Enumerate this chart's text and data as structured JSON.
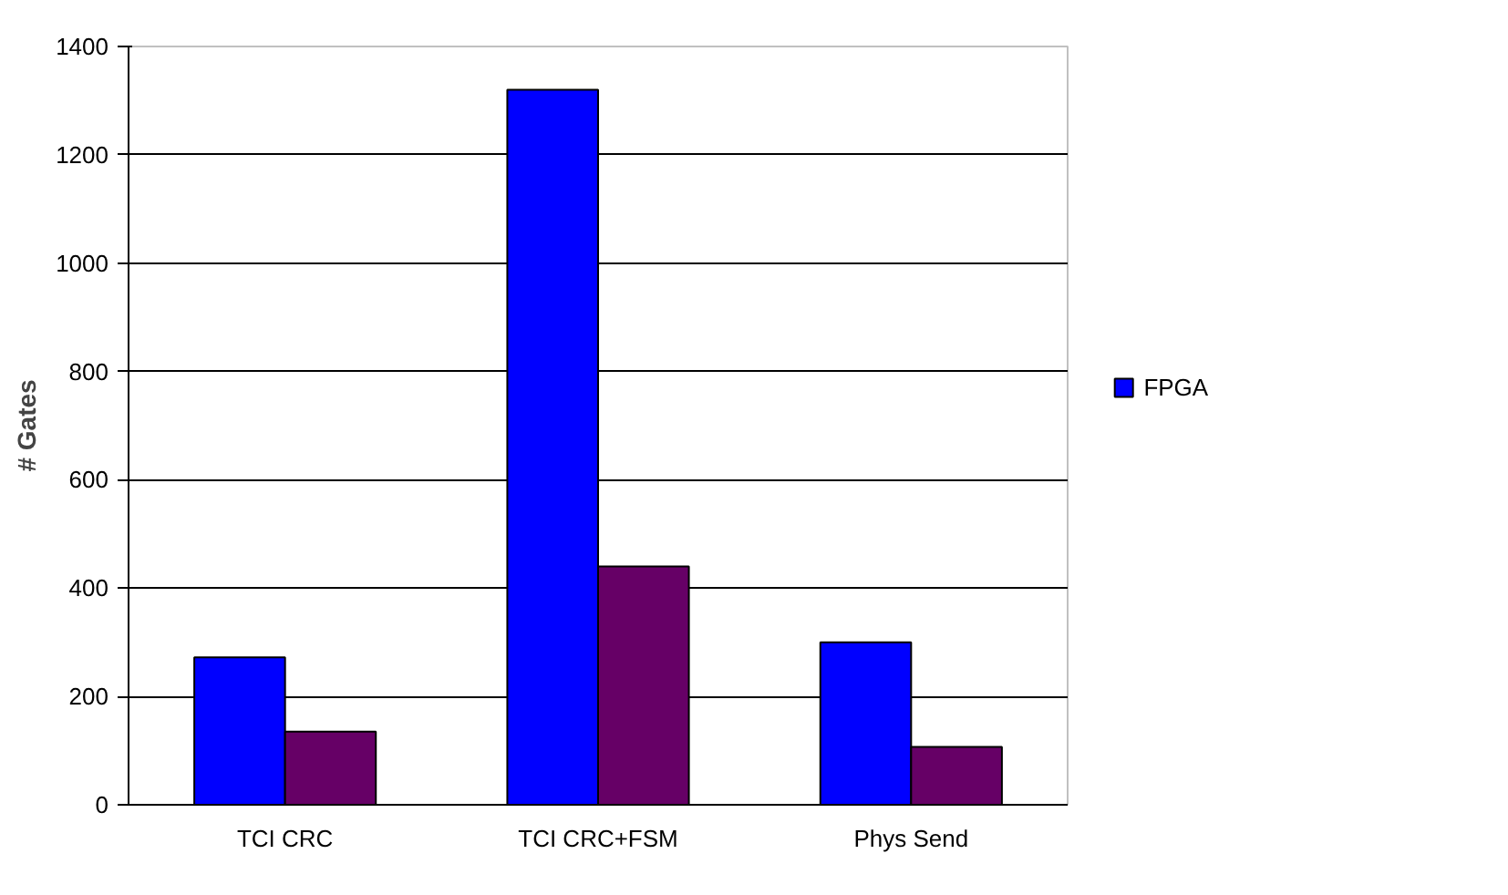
{
  "chart_data": {
    "type": "bar",
    "ylabel": "# Gates",
    "categories": [
      "TCI CRC",
      "TCI CRC+FSM",
      "Phys Send"
    ],
    "series": [
      {
        "name": "FPGA",
        "color": "#0000ff",
        "values": [
          272,
          1320,
          300
        ]
      },
      {
        "color": "#660066",
        "values": [
          135,
          440,
          107
        ]
      }
    ],
    "ylim": [
      0,
      1400
    ],
    "yticks": [
      0,
      200,
      400,
      600,
      800,
      1000,
      1200,
      1400
    ],
    "grid": "y",
    "legend": "right"
  }
}
